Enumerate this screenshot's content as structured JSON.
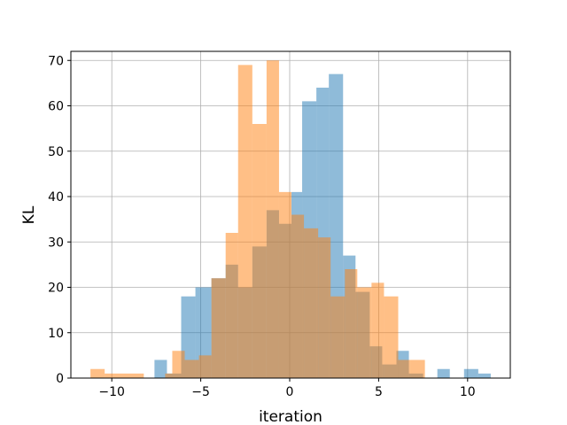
{
  "chart_data": {
    "type": "bar",
    "subtype": "overlaid-histogram",
    "title": "",
    "xlabel": "iteration",
    "ylabel": "KL",
    "xlim": [
      -12.3,
      12.4
    ],
    "ylim": [
      0,
      72
    ],
    "grid": true,
    "legend": "none",
    "xticks": [
      -10,
      -5,
      0,
      5,
      10
    ],
    "yticks": [
      0,
      10,
      20,
      30,
      40,
      50,
      60,
      70
    ],
    "series": [
      {
        "color": "#1f77b4",
        "opacity": 0.5,
        "bins": [
          {
            "x0": -7.6,
            "x1": -6.9,
            "count": 4
          },
          {
            "x0": -6.9,
            "x1": -6.1,
            "count": 1
          },
          {
            "x0": -6.1,
            "x1": -5.3,
            "count": 18
          },
          {
            "x0": -5.3,
            "x1": -4.4,
            "count": 20
          },
          {
            "x0": -4.4,
            "x1": -3.6,
            "count": 22
          },
          {
            "x0": -3.6,
            "x1": -2.9,
            "count": 25
          },
          {
            "x0": -2.9,
            "x1": -2.1,
            "count": 20
          },
          {
            "x0": -2.1,
            "x1": -1.3,
            "count": 29
          },
          {
            "x0": -1.3,
            "x1": -0.6,
            "count": 37
          },
          {
            "x0": -0.6,
            "x1": 0.1,
            "count": 34
          },
          {
            "x0": 0.1,
            "x1": 0.7,
            "count": 41
          },
          {
            "x0": 0.7,
            "x1": 1.5,
            "count": 61
          },
          {
            "x0": 1.5,
            "x1": 2.2,
            "count": 64
          },
          {
            "x0": 2.2,
            "x1": 3.0,
            "count": 67
          },
          {
            "x0": 3.0,
            "x1": 3.7,
            "count": 27
          },
          {
            "x0": 3.7,
            "x1": 4.5,
            "count": 19
          },
          {
            "x0": 4.5,
            "x1": 5.2,
            "count": 7
          },
          {
            "x0": 5.2,
            "x1": 6.0,
            "count": 3
          },
          {
            "x0": 6.0,
            "x1": 6.7,
            "count": 6
          },
          {
            "x0": 6.7,
            "x1": 7.5,
            "count": 1
          },
          {
            "x0": 8.3,
            "x1": 9.0,
            "count": 2
          },
          {
            "x0": 9.8,
            "x1": 10.6,
            "count": 2
          },
          {
            "x0": 10.6,
            "x1": 11.3,
            "count": 1
          }
        ]
      },
      {
        "color": "#ff7f0e",
        "opacity": 0.5,
        "bins": [
          {
            "x0": -11.2,
            "x1": -10.4,
            "count": 2
          },
          {
            "x0": -10.4,
            "x1": -8.2,
            "count": 1
          },
          {
            "x0": -7.0,
            "x1": -6.6,
            "count": 1
          },
          {
            "x0": -6.6,
            "x1": -5.9,
            "count": 6
          },
          {
            "x0": -5.9,
            "x1": -5.1,
            "count": 4
          },
          {
            "x0": -5.1,
            "x1": -4.4,
            "count": 5
          },
          {
            "x0": -4.4,
            "x1": -3.6,
            "count": 22
          },
          {
            "x0": -3.6,
            "x1": -2.9,
            "count": 32
          },
          {
            "x0": -2.9,
            "x1": -2.1,
            "count": 69
          },
          {
            "x0": -2.1,
            "x1": -1.3,
            "count": 56
          },
          {
            "x0": -1.3,
            "x1": -0.6,
            "count": 70
          },
          {
            "x0": -0.6,
            "x1": 0.1,
            "count": 41
          },
          {
            "x0": 0.1,
            "x1": 0.8,
            "count": 36
          },
          {
            "x0": 0.8,
            "x1": 1.6,
            "count": 33
          },
          {
            "x0": 1.6,
            "x1": 2.3,
            "count": 31
          },
          {
            "x0": 2.3,
            "x1": 3.1,
            "count": 18
          },
          {
            "x0": 3.1,
            "x1": 3.8,
            "count": 24
          },
          {
            "x0": 3.8,
            "x1": 4.6,
            "count": 20
          },
          {
            "x0": 4.6,
            "x1": 5.3,
            "count": 21
          },
          {
            "x0": 5.3,
            "x1": 6.1,
            "count": 18
          },
          {
            "x0": 6.1,
            "x1": 6.8,
            "count": 4
          },
          {
            "x0": 6.8,
            "x1": 7.6,
            "count": 4
          }
        ]
      }
    ]
  }
}
